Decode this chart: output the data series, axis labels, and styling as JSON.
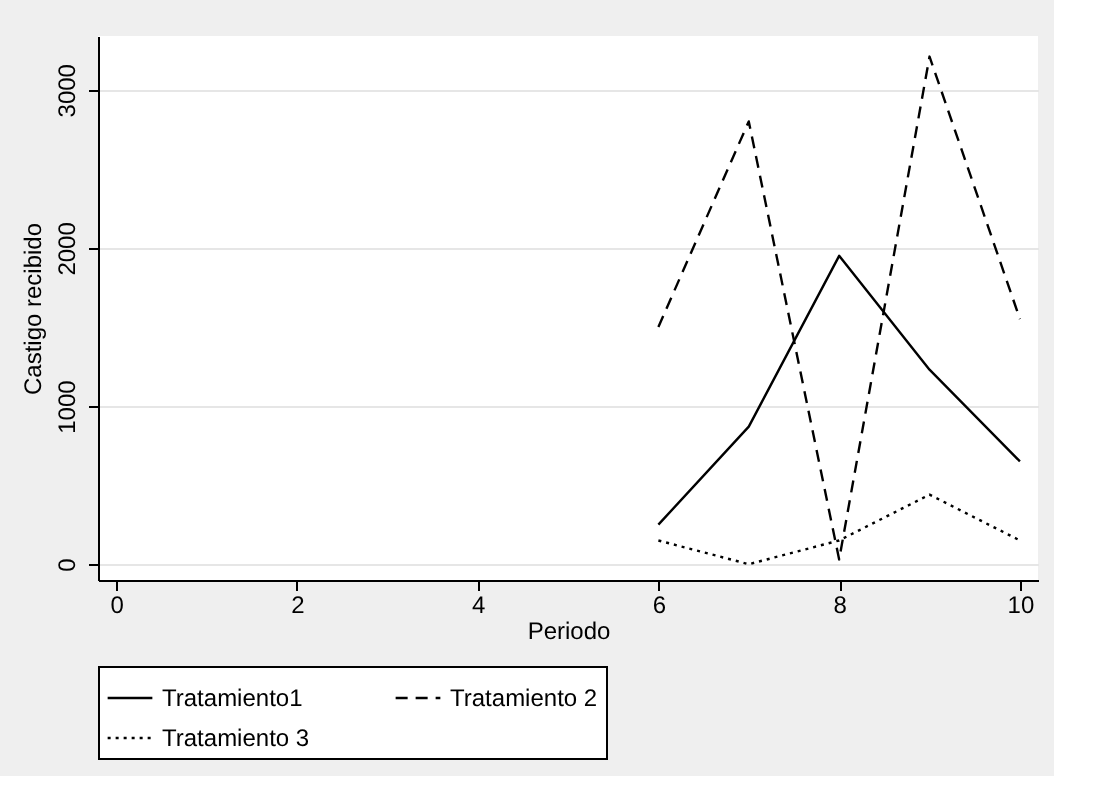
{
  "chart_data": {
    "type": "line",
    "xlabel": "Periodo",
    "ylabel": "Castigo recibido",
    "x": [
      6,
      7,
      8,
      9,
      10
    ],
    "series": [
      {
        "name": "Tratamiento1",
        "color": "#000000",
        "line_style": "solid",
        "values": [
          250,
          870,
          1950,
          1230,
          650
        ]
      },
      {
        "name": "Tratamiento 2",
        "color": "#000000",
        "line_style": "dashed",
        "values": [
          1500,
          2800,
          30,
          3210,
          1550
        ]
      },
      {
        "name": "Tratamiento 3",
        "color": "#000000",
        "line_style": "dotted",
        "values": [
          150,
          0,
          150,
          440,
          150
        ]
      }
    ],
    "xlim": [
      -0.2,
      10.2
    ],
    "xticks": [
      0,
      2,
      4,
      6,
      8,
      10
    ],
    "ylim": [
      -100,
      3340
    ],
    "yticks": [
      0,
      1000,
      2000,
      3000
    ],
    "grid": "y",
    "legend": "bottom",
    "marker": "none"
  }
}
